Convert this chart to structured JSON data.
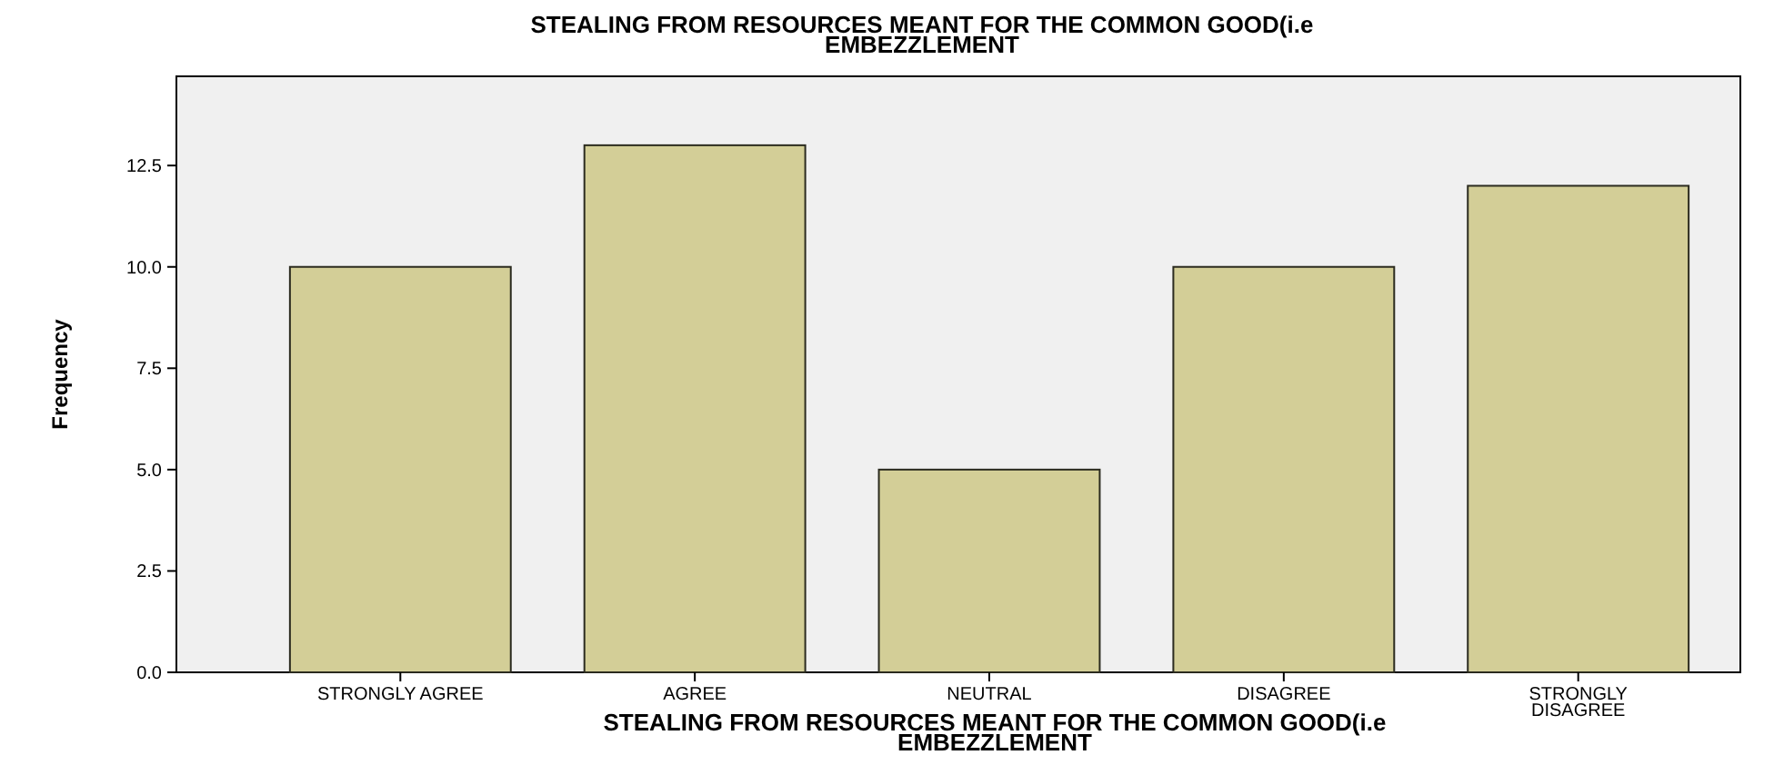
{
  "chart_data": {
    "type": "bar",
    "title": "STEALING FROM RESOURCES MEANT FOR THE COMMON GOOD(i.e EMBEZZLEMENT",
    "xlabel": "STEALING FROM RESOURCES MEANT FOR THE COMMON GOOD(i.e EMBEZZLEMENT",
    "ylabel": "Frequency",
    "categories": [
      "STRONGLY AGREE",
      "AGREE",
      "NEUTRAL",
      "DISAGREE",
      "STRONGLY DISAGREE"
    ],
    "values": [
      10,
      13,
      5,
      10,
      12
    ],
    "color": "#d3ce97",
    "ylim": [
      0,
      14.7
    ],
    "yticks": [
      {
        "value": 0,
        "label": "0.0"
      },
      {
        "value": 2.5,
        "label": "2.5"
      },
      {
        "value": 5,
        "label": "5.0"
      },
      {
        "value": 7.5,
        "label": "7.5"
      },
      {
        "value": 10,
        "label": "10.0"
      },
      {
        "value": 12.5,
        "label": "12.5"
      }
    ],
    "grid": false
  }
}
